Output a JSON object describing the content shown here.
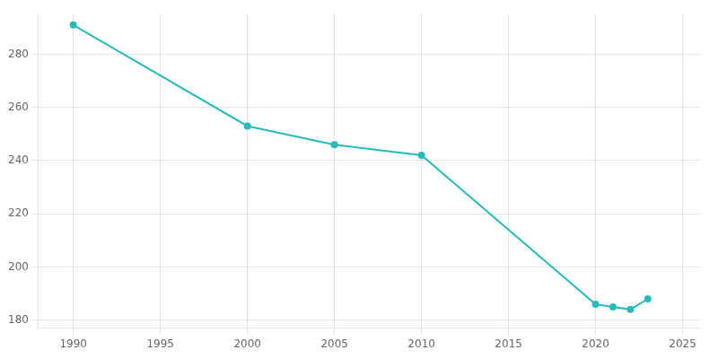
{
  "chart_data": {
    "type": "line",
    "x": [
      1990,
      2000,
      2005,
      2010,
      2020,
      2021,
      2022,
      2023
    ],
    "values": [
      291,
      253,
      246,
      242,
      186,
      185,
      184,
      188
    ],
    "color": "#29BBBB",
    "marker": "circle",
    "xlim": [
      1988,
      2026
    ],
    "ylim": [
      177,
      295
    ],
    "xticks": [
      1990,
      1995,
      2000,
      2005,
      2010,
      2015,
      2020,
      2025
    ],
    "yticks": [
      180,
      200,
      220,
      240,
      260,
      280
    ],
    "grid": true
  }
}
